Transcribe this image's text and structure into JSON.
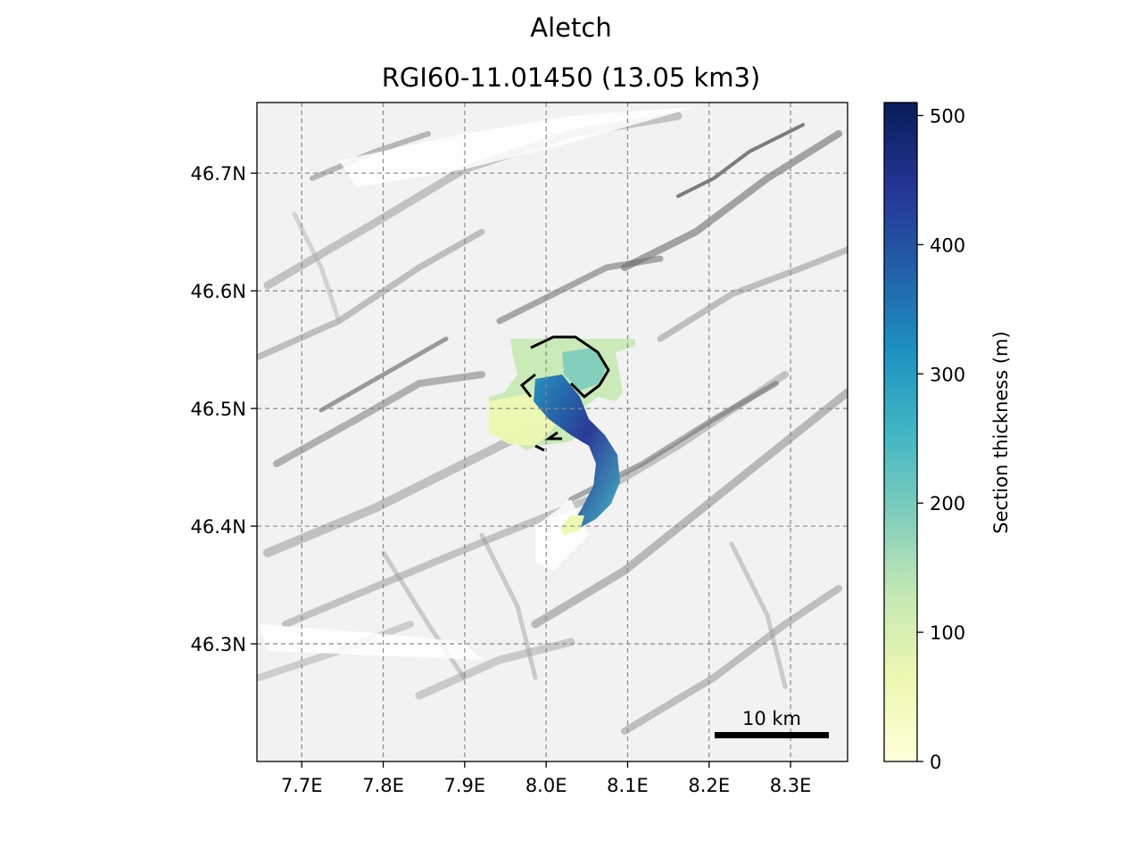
{
  "title": "Aletch",
  "subtitle": "RGI60-11.01450 (13.05 km3)",
  "map": {
    "x_ticks": [
      "7.7E",
      "7.8E",
      "7.9E",
      "8.0E",
      "8.1E",
      "8.2E",
      "8.3E"
    ],
    "x_tick_values": [
      7.7,
      7.8,
      7.9,
      8.0,
      8.1,
      8.2,
      8.3
    ],
    "y_ticks": [
      "46.7N",
      "46.6N",
      "46.5N",
      "46.4N",
      "46.3N"
    ],
    "y_tick_values": [
      46.7,
      46.6,
      46.5,
      46.4,
      46.3
    ],
    "lon_range": [
      7.645,
      8.37
    ],
    "lat_range": [
      46.2,
      46.76
    ],
    "grid": true,
    "basemap": "hillshade-grayscale",
    "scalebar_label": "10 km",
    "scalebar_location": "bottom-right"
  },
  "colorbar": {
    "label": "Section thickness (m)",
    "ticks": [
      "0",
      "100",
      "200",
      "300",
      "400",
      "500"
    ],
    "tick_values": [
      0,
      100,
      200,
      300,
      400,
      500
    ],
    "range": [
      0,
      510
    ],
    "colormap": "YlGnBu",
    "colors": [
      "#ffffd9",
      "#edf8b1",
      "#c7e9b4",
      "#7fcdbb",
      "#41b6c4",
      "#1d91c0",
      "#225ea8",
      "#253494",
      "#081d58"
    ]
  }
}
